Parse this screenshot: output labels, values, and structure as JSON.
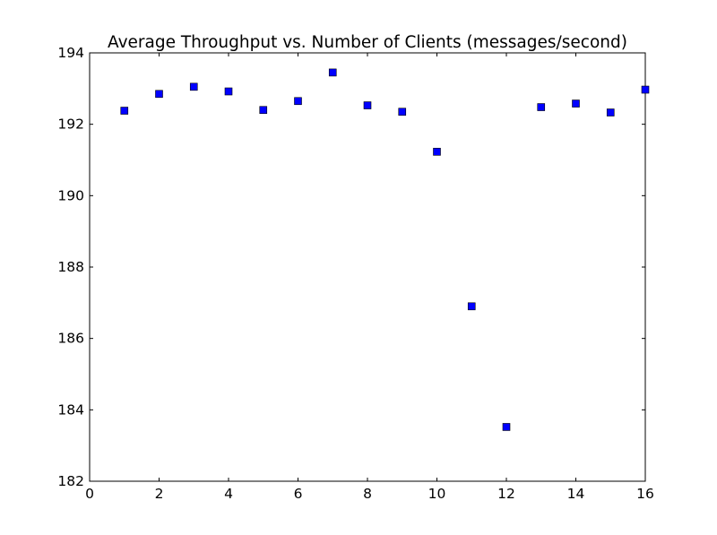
{
  "chart_data": {
    "type": "scatter",
    "title": "Average Throughput vs. Number of Clients (messages/second)",
    "xlabel": "",
    "ylabel": "",
    "xlim": [
      0,
      16
    ],
    "ylim": [
      182,
      194
    ],
    "x_ticks": [
      "0",
      "2",
      "4",
      "6",
      "8",
      "10",
      "12",
      "14",
      "16"
    ],
    "y_ticks": [
      "182",
      "184",
      "186",
      "188",
      "190",
      "192",
      "194"
    ],
    "grid": false,
    "marker": "square",
    "colors": {
      "marker_fill": "#0000ff",
      "marker_edge": "#000000",
      "axes": "#000000",
      "background": "#ffffff"
    },
    "points": [
      {
        "x": 1,
        "y": 192.38
      },
      {
        "x": 2,
        "y": 192.85
      },
      {
        "x": 3,
        "y": 193.05
      },
      {
        "x": 4,
        "y": 192.92
      },
      {
        "x": 5,
        "y": 192.4
      },
      {
        "x": 6,
        "y": 192.65
      },
      {
        "x": 7,
        "y": 193.45
      },
      {
        "x": 8,
        "y": 192.53
      },
      {
        "x": 9,
        "y": 192.35
      },
      {
        "x": 10,
        "y": 191.23
      },
      {
        "x": 11,
        "y": 186.9
      },
      {
        "x": 12,
        "y": 183.52
      },
      {
        "x": 13,
        "y": 192.48
      },
      {
        "x": 14,
        "y": 192.58
      },
      {
        "x": 15,
        "y": 192.33
      },
      {
        "x": 16,
        "y": 192.97
      }
    ]
  }
}
